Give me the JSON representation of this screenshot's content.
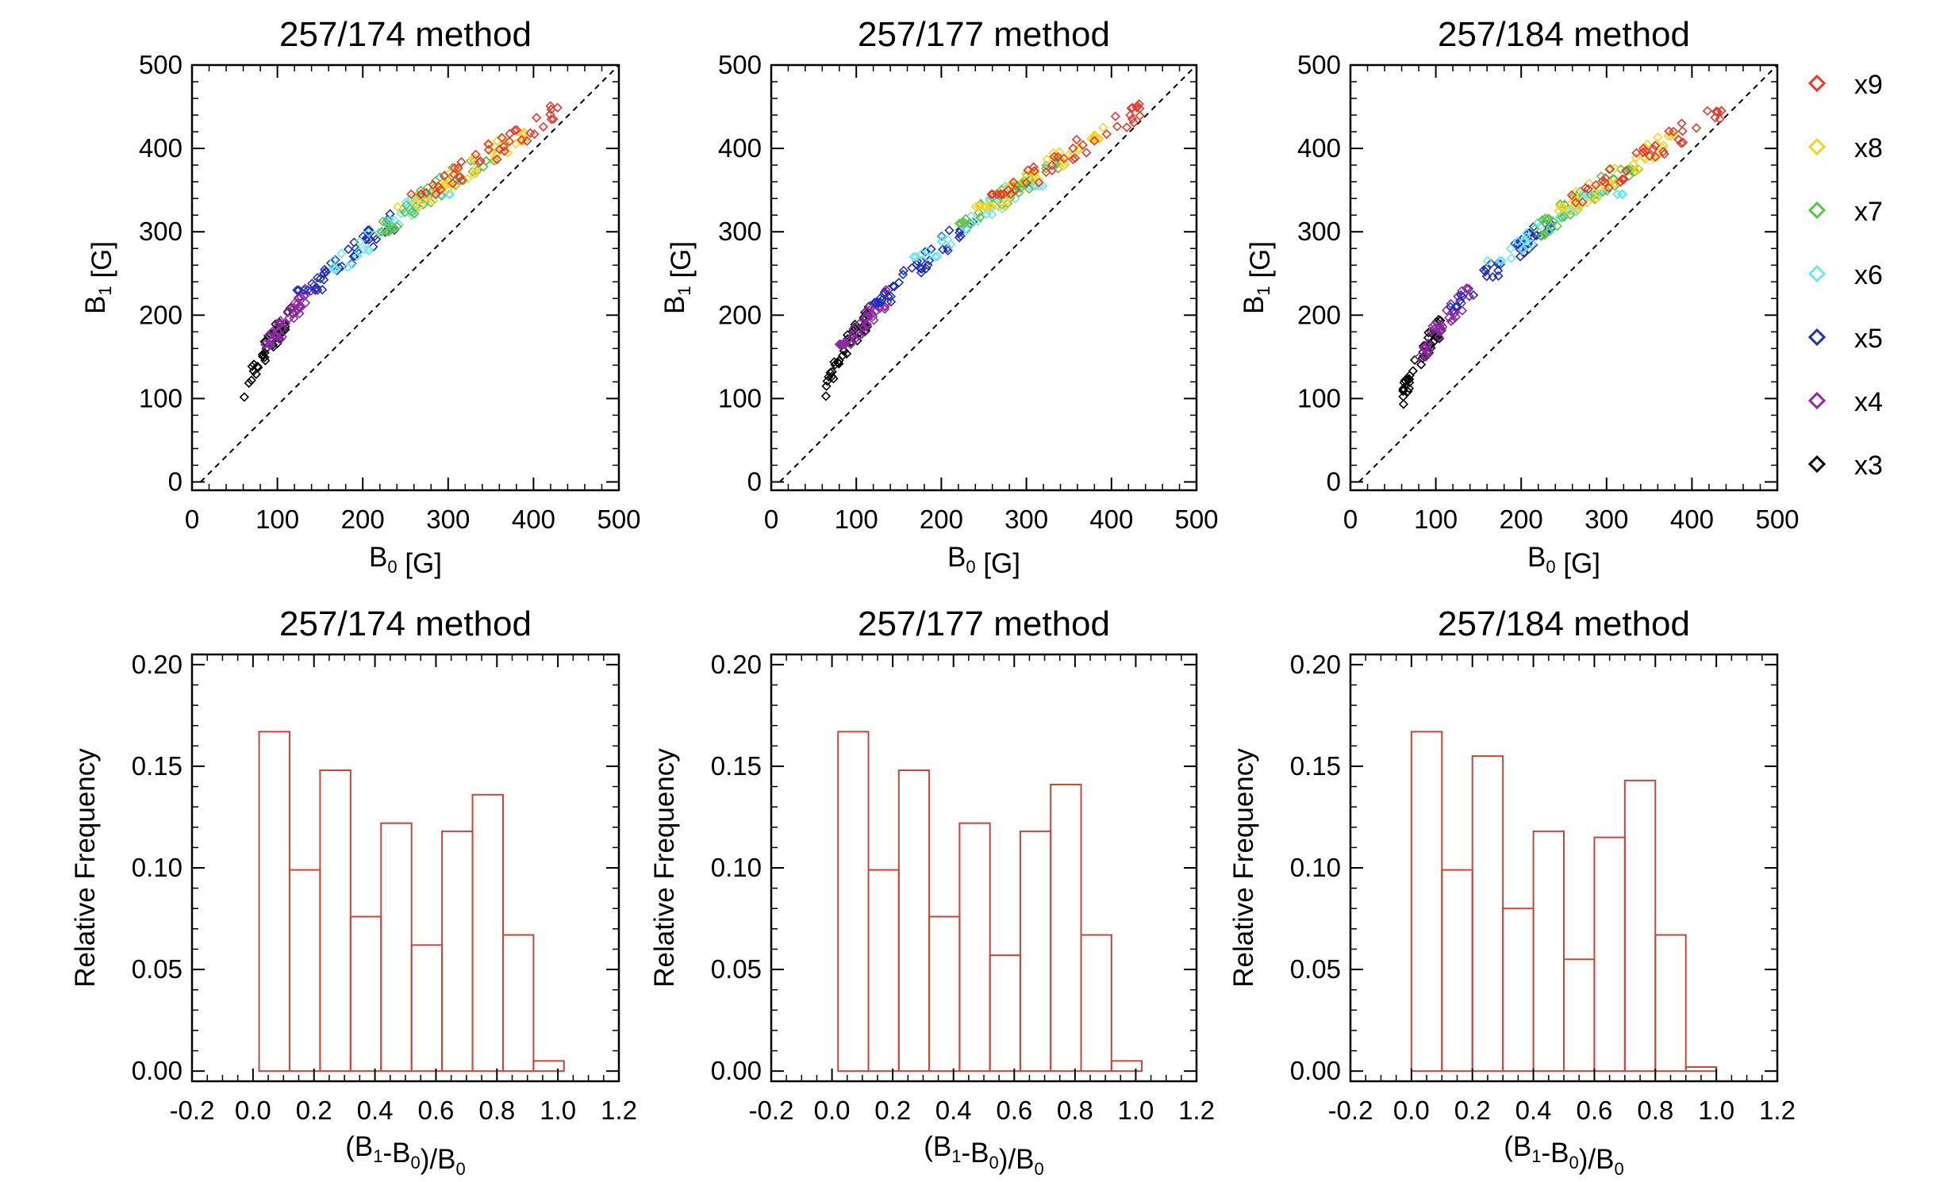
{
  "chart_data": [
    {
      "id": "scatter-257-174",
      "type": "scatter",
      "title": "257/174 method",
      "xlabel": "B₀ [G]",
      "ylabel": "B₁ [G]",
      "xlim": [
        0,
        500
      ],
      "ylim": [
        -10,
        500
      ],
      "xticks": [
        0,
        100,
        200,
        300,
        400,
        500
      ],
      "yticks": [
        0,
        100,
        200,
        300,
        400,
        500
      ],
      "tick_labels": [
        "0",
        "100",
        "200",
        "300",
        "400",
        "500"
      ],
      "reference_line": "y = x (dashed)",
      "series": [
        {
          "name": "x3",
          "x_range": [
            60,
            120
          ],
          "y_range": [
            90,
            230
          ]
        },
        {
          "name": "x4",
          "x_range": [
            85,
            145
          ],
          "y_range": [
            165,
            255
          ]
        },
        {
          "name": "x5",
          "x_range": [
            120,
            240
          ],
          "y_range": [
            230,
            335
          ]
        },
        {
          "name": "x6",
          "x_range": [
            160,
            305
          ],
          "y_range": [
            255,
            345
          ]
        },
        {
          "name": "x7",
          "x_range": [
            220,
            355
          ],
          "y_range": [
            300,
            385
          ]
        },
        {
          "name": "x8",
          "x_range": [
            240,
            395
          ],
          "y_range": [
            330,
            420
          ]
        },
        {
          "name": "x9",
          "x_range": [
            255,
            440
          ],
          "y_range": [
            345,
            460
          ]
        }
      ]
    },
    {
      "id": "scatter-257-177",
      "type": "scatter",
      "title": "257/177 method",
      "xlabel": "B₀ [G]",
      "ylabel": "B₁ [G]",
      "xlim": [
        0,
        500
      ],
      "ylim": [
        -10,
        500
      ],
      "xticks": [
        0,
        100,
        200,
        300,
        400,
        500
      ],
      "yticks": [
        0,
        100,
        200,
        300,
        400,
        500
      ],
      "tick_labels": [
        "0",
        "100",
        "200",
        "300",
        "400",
        "500"
      ],
      "reference_line": "y = x (dashed)",
      "series": [
        {
          "name": "x3",
          "x_range": [
            60,
            115
          ],
          "y_range": [
            90,
            215
          ]
        },
        {
          "name": "x4",
          "x_range": [
            80,
            140
          ],
          "y_range": [
            165,
            235
          ]
        },
        {
          "name": "x5",
          "x_range": [
            120,
            240
          ],
          "y_range": [
            215,
            330
          ]
        },
        {
          "name": "x6",
          "x_range": [
            165,
            320
          ],
          "y_range": [
            270,
            355
          ]
        },
        {
          "name": "x7",
          "x_range": [
            220,
            345
          ],
          "y_range": [
            310,
            385
          ]
        },
        {
          "name": "x8",
          "x_range": [
            240,
            395
          ],
          "y_range": [
            330,
            425
          ]
        },
        {
          "name": "x9",
          "x_range": [
            255,
            440
          ],
          "y_range": [
            345,
            455
          ]
        }
      ]
    },
    {
      "id": "scatter-257-184",
      "type": "scatter",
      "title": "257/184 method",
      "xlabel": "B₀ [G]",
      "ylabel": "B₁ [G]",
      "xlim": [
        0,
        500
      ],
      "ylim": [
        -10,
        500
      ],
      "xticks": [
        0,
        100,
        200,
        300,
        400,
        500
      ],
      "yticks": [
        0,
        100,
        200,
        300,
        400,
        500
      ],
      "tick_labels": [
        "0",
        "100",
        "200",
        "300",
        "400",
        "500"
      ],
      "reference_line": "y = x (dashed)",
      "series": [
        {
          "name": "x3",
          "x_range": [
            60,
            110
          ],
          "y_range": [
            90,
            205
          ]
        },
        {
          "name": "x4",
          "x_range": [
            80,
            140
          ],
          "y_range": [
            150,
            235
          ]
        },
        {
          "name": "x5",
          "x_range": [
            115,
            235
          ],
          "y_range": [
            210,
            310
          ]
        },
        {
          "name": "x6",
          "x_range": [
            160,
            320
          ],
          "y_range": [
            265,
            345
          ]
        },
        {
          "name": "x7",
          "x_range": [
            210,
            340
          ],
          "y_range": [
            295,
            375
          ]
        },
        {
          "name": "x8",
          "x_range": [
            240,
            385
          ],
          "y_range": [
            325,
            415
          ]
        },
        {
          "name": "x9",
          "x_range": [
            250,
            440
          ],
          "y_range": [
            335,
            445
          ]
        }
      ]
    },
    {
      "id": "hist-257-174",
      "type": "bar",
      "title": "257/174 method",
      "xlabel": "(B₁-B₀)/B₀",
      "ylabel": "Relative Frequency",
      "xlim": [
        -0.2,
        1.2
      ],
      "ylim": [
        -0.005,
        0.205
      ],
      "xticks": [
        -0.2,
        0.0,
        0.2,
        0.4,
        0.6,
        0.8,
        1.0,
        1.2
      ],
      "xtick_labels": [
        "-0.2",
        "0.0",
        "0.2",
        "0.4",
        "0.6",
        "0.8",
        "1.0",
        "1.2"
      ],
      "yticks": [
        0.0,
        0.05,
        0.1,
        0.15,
        0.2
      ],
      "ytick_labels": [
        "0.00",
        "0.05",
        "0.10",
        "0.15",
        "0.20"
      ],
      "bin_edges": [
        0.02,
        0.12,
        0.22,
        0.32,
        0.42,
        0.52,
        0.62,
        0.72,
        0.82,
        0.92,
        1.02
      ],
      "values": [
        0.167,
        0.099,
        0.148,
        0.076,
        0.122,
        0.062,
        0.118,
        0.136,
        0.067,
        0.005
      ]
    },
    {
      "id": "hist-257-177",
      "type": "bar",
      "title": "257/177 method",
      "xlabel": "(B₁-B₀)/B₀",
      "ylabel": "Relative Frequency",
      "xlim": [
        -0.2,
        1.2
      ],
      "ylim": [
        -0.005,
        0.205
      ],
      "xticks": [
        -0.2,
        0.0,
        0.2,
        0.4,
        0.6,
        0.8,
        1.0,
        1.2
      ],
      "xtick_labels": [
        "-0.2",
        "0.0",
        "0.2",
        "0.4",
        "0.6",
        "0.8",
        "1.0",
        "1.2"
      ],
      "yticks": [
        0.0,
        0.05,
        0.1,
        0.15,
        0.2
      ],
      "ytick_labels": [
        "0.00",
        "0.05",
        "0.10",
        "0.15",
        "0.20"
      ],
      "bin_edges": [
        0.02,
        0.12,
        0.22,
        0.32,
        0.42,
        0.52,
        0.62,
        0.72,
        0.82,
        0.92,
        1.02
      ],
      "values": [
        0.167,
        0.099,
        0.148,
        0.076,
        0.122,
        0.057,
        0.118,
        0.141,
        0.067,
        0.005
      ]
    },
    {
      "id": "hist-257-184",
      "type": "bar",
      "title": "257/184 method",
      "xlabel": "(B₁-B₀)/B₀",
      "ylabel": "Relative Frequency",
      "xlim": [
        -0.2,
        1.2
      ],
      "ylim": [
        -0.005,
        0.205
      ],
      "xticks": [
        -0.2,
        0.0,
        0.2,
        0.4,
        0.6,
        0.8,
        1.0,
        1.2
      ],
      "xtick_labels": [
        "-0.2",
        "0.0",
        "0.2",
        "0.4",
        "0.6",
        "0.8",
        "1.0",
        "1.2"
      ],
      "yticks": [
        0.0,
        0.05,
        0.1,
        0.15,
        0.2
      ],
      "ytick_labels": [
        "0.00",
        "0.05",
        "0.10",
        "0.15",
        "0.20"
      ],
      "bin_edges": [
        0.0,
        0.1,
        0.2,
        0.3,
        0.4,
        0.5,
        0.6,
        0.7,
        0.8,
        0.9,
        1.0
      ],
      "values": [
        0.167,
        0.099,
        0.155,
        0.08,
        0.118,
        0.055,
        0.115,
        0.143,
        0.067,
        0.002
      ]
    }
  ],
  "legend": {
    "placement": "right of top row",
    "entries": [
      {
        "label": "x9",
        "color": "#e8382c"
      },
      {
        "label": "x8",
        "color": "#f5d327"
      },
      {
        "label": "x7",
        "color": "#5cc24a"
      },
      {
        "label": "x6",
        "color": "#6fe6ef"
      },
      {
        "label": "x5",
        "color": "#1f2fb8"
      },
      {
        "label": "x4",
        "color": "#8e2aa4"
      },
      {
        "label": "x3",
        "color": "#000000"
      }
    ]
  },
  "colors": {
    "histogram_edge": "#c8453c",
    "axis": "#000000",
    "reference_line": "#000000"
  }
}
